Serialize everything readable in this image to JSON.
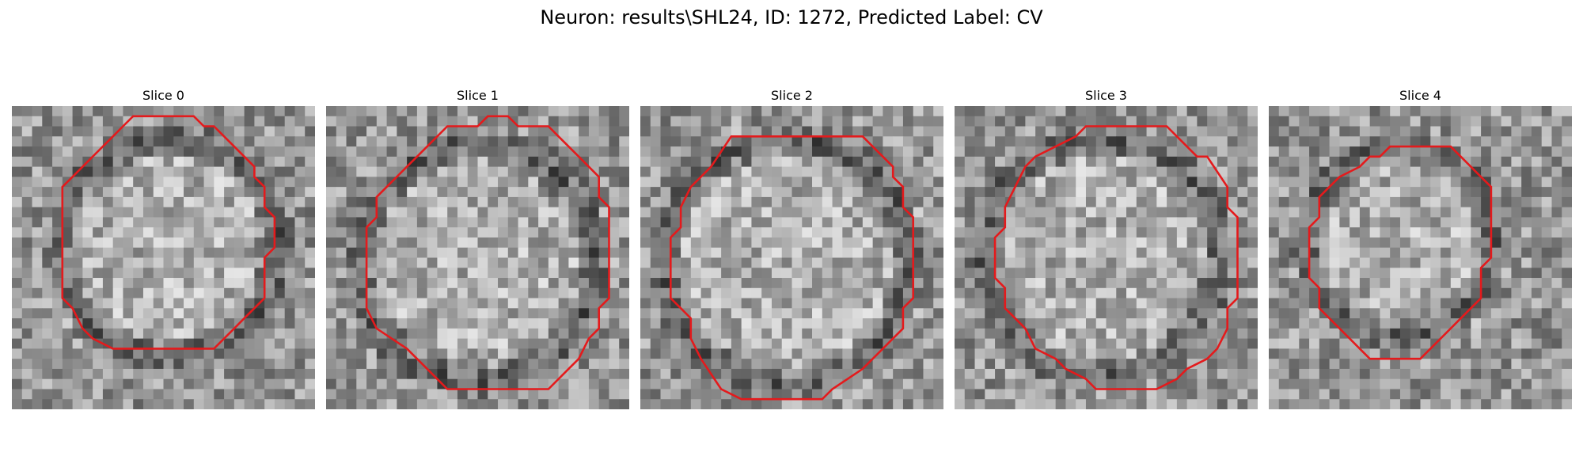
{
  "figure": {
    "title": "Neuron: results\\SHL24, ID: 1272, Predicted Label: CV"
  },
  "colors": {
    "outline": "#e41a1c",
    "background": "#ffffff"
  },
  "panels": [
    {
      "title": "Slice 0"
    },
    {
      "title": "Slice 1"
    },
    {
      "title": "Slice 2"
    },
    {
      "title": "Slice 3"
    },
    {
      "title": "Slice 4"
    }
  ]
}
